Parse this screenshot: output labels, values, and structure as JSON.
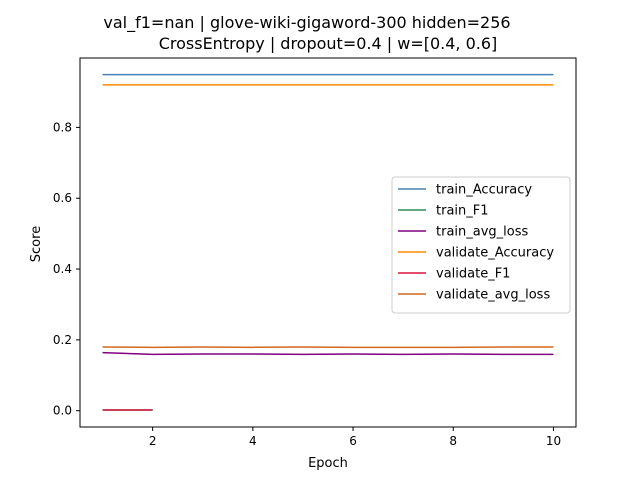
{
  "chart_data": {
    "type": "line",
    "title_lines": [
      "val_f1=nan | glove-wiki-gigaword-300  hidden=256",
      "CrossEntropy | dropout=0.4 | w=[0.4, 0.6]"
    ],
    "xlabel": "Epoch",
    "ylabel": "Score",
    "xlim": [
      0.55,
      10.45
    ],
    "ylim": [
      -0.046,
      0.996
    ],
    "xticks": [
      2,
      4,
      6,
      8,
      10
    ],
    "yticks": [
      0.0,
      0.2,
      0.4,
      0.6,
      0.8
    ],
    "xtick_labels": [
      "2",
      "4",
      "6",
      "8",
      "10"
    ],
    "ytick_labels": [
      "0.0",
      "0.2",
      "0.4",
      "0.6",
      "0.8"
    ],
    "grid": false,
    "legend_position": "center-right",
    "series": [
      {
        "name": "train_Accuracy",
        "color": "#4682b4",
        "x": [
          1,
          2,
          3,
          4,
          5,
          6,
          7,
          8,
          9,
          10
        ],
        "y": [
          0.949,
          0.949,
          0.949,
          0.949,
          0.949,
          0.949,
          0.949,
          0.949,
          0.949,
          0.949
        ]
      },
      {
        "name": "train_F1",
        "color": "#2e8b57",
        "x": [
          1,
          2
        ],
        "y": [
          0.002,
          0.002
        ]
      },
      {
        "name": "train_avg_loss",
        "color": "#800080",
        "x": [
          1,
          2,
          3,
          4,
          5,
          6,
          7,
          8,
          9,
          10
        ],
        "y": [
          0.164,
          0.159,
          0.16,
          0.16,
          0.159,
          0.16,
          0.159,
          0.16,
          0.159,
          0.159
        ]
      },
      {
        "name": "validate_Accuracy",
        "color": "#ff8c00",
        "x": [
          1,
          2,
          3,
          4,
          5,
          6,
          7,
          8,
          9,
          10
        ],
        "y": [
          0.92,
          0.92,
          0.92,
          0.92,
          0.92,
          0.92,
          0.92,
          0.92,
          0.92,
          0.92
        ]
      },
      {
        "name": "validate_F1",
        "color": "#dc143c",
        "x": [
          1,
          2
        ],
        "y": [
          0.002,
          0.002
        ]
      },
      {
        "name": "validate_avg_loss",
        "color": "#d2691e",
        "x": [
          1,
          2,
          3,
          4,
          5,
          6,
          7,
          8,
          9,
          10
        ],
        "y": [
          0.18,
          0.179,
          0.18,
          0.179,
          0.18,
          0.179,
          0.179,
          0.179,
          0.18,
          0.18
        ]
      }
    ]
  }
}
